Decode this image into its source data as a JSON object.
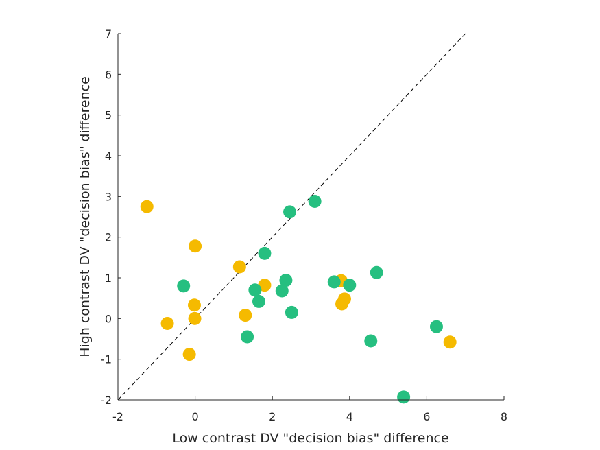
{
  "chart_data": {
    "type": "scatter",
    "title": "",
    "xlabel": "Low contrast DV \"decision bias\" difference",
    "ylabel": "High contrast DV \"decision bias\" difference",
    "xlim": [
      -2,
      8
    ],
    "ylim": [
      -2,
      7
    ],
    "xticks": [
      -2,
      0,
      2,
      4,
      6,
      8
    ],
    "yticks": [
      -2,
      -1,
      0,
      1,
      2,
      3,
      4,
      5,
      6,
      7
    ],
    "grid": false,
    "reference_line": {
      "style": "dashed",
      "color": "#000000",
      "from": [
        -2,
        -2
      ],
      "to": [
        7,
        7
      ]
    },
    "series": [
      {
        "color": "#F5BA00",
        "points": [
          [
            -1.25,
            2.75
          ],
          [
            0.0,
            1.78
          ],
          [
            -0.72,
            -0.12
          ],
          [
            -0.02,
            0.33
          ],
          [
            -0.01,
            0.0
          ],
          [
            -0.15,
            -0.88
          ],
          [
            1.15,
            1.27
          ],
          [
            1.8,
            0.82
          ],
          [
            1.3,
            0.08
          ],
          [
            3.78,
            0.93
          ],
          [
            3.87,
            0.48
          ],
          [
            3.8,
            0.36
          ],
          [
            6.6,
            -0.58
          ]
        ]
      },
      {
        "color": "#26BF80",
        "points": [
          [
            -0.3,
            0.8
          ],
          [
            1.55,
            0.7
          ],
          [
            1.65,
            0.42
          ],
          [
            1.8,
            1.6
          ],
          [
            1.35,
            -0.45
          ],
          [
            2.25,
            0.68
          ],
          [
            2.35,
            0.94
          ],
          [
            2.45,
            2.62
          ],
          [
            2.5,
            0.15
          ],
          [
            3.1,
            2.88
          ],
          [
            3.6,
            0.9
          ],
          [
            4.0,
            0.82
          ],
          [
            4.7,
            1.13
          ],
          [
            4.55,
            -0.55
          ],
          [
            5.4,
            -1.93
          ],
          [
            6.25,
            -0.2
          ]
        ]
      }
    ]
  }
}
